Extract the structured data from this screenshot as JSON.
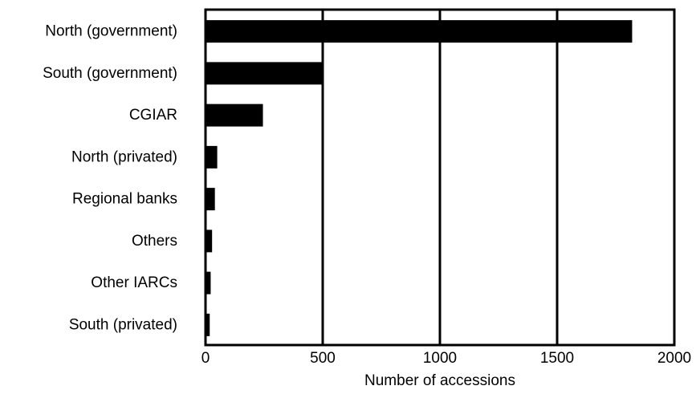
{
  "chart_data": {
    "type": "bar",
    "orientation": "horizontal",
    "categories": [
      "North (government)",
      "South (government)",
      "CGIAR",
      "North (privated)",
      "Regional banks",
      "Others",
      "Other IARCs",
      "South (privated)"
    ],
    "values": [
      1820,
      500,
      245,
      50,
      40,
      28,
      22,
      18
    ],
    "xlabel": "Number of accessions",
    "ylabel": "",
    "xlim": [
      0,
      2000
    ],
    "xticks": [
      0,
      500,
      1000,
      1500,
      2000
    ],
    "grid": "vertical lines at 500, 1000, 1500",
    "bar_color": "#000000",
    "axis_color": "#000000"
  }
}
